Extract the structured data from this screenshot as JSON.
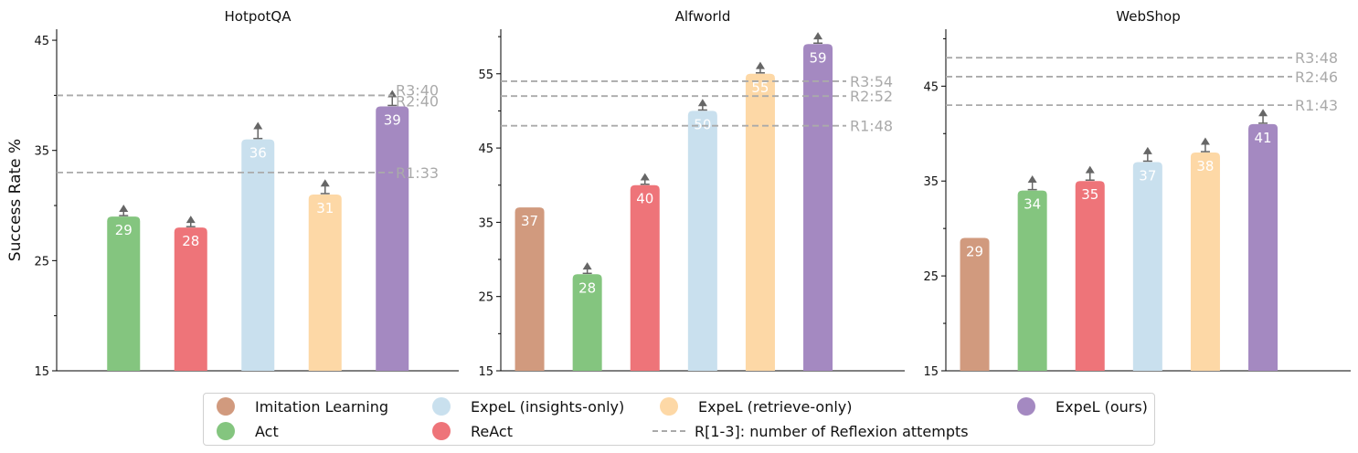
{
  "chart_data": [
    {
      "type": "bar",
      "title": "HotpotQA",
      "ylabel": "Success Rate %",
      "ylim": [
        15,
        46
      ],
      "yticks": [
        15,
        25,
        35,
        45
      ],
      "bars": [
        {
          "series": "Act",
          "value": 29,
          "label": "29",
          "arrow_to": 30
        },
        {
          "series": "ReAct",
          "value": 28,
          "label": "28",
          "arrow_to": 29
        },
        {
          "series": "ExpeL (insights-only)",
          "value": 36,
          "label": "36",
          "arrow_to": 37.5
        },
        {
          "series": "ExpeL (retrieve-only)",
          "value": 31,
          "label": "31",
          "arrow_to": 32.3
        },
        {
          "series": "ExpeL (ours)",
          "value": 39,
          "label": "39",
          "arrow_to": 40.4
        }
      ],
      "reflexion_lines": [
        {
          "label": "R3:40",
          "value": 40
        },
        {
          "label": "R2:40",
          "value": 40
        },
        {
          "label": "R1:33",
          "value": 33
        }
      ]
    },
    {
      "type": "bar",
      "title": "Alfworld",
      "ylabel": "",
      "ylim": [
        15,
        61
      ],
      "yticks": [
        15,
        25,
        35,
        45,
        55
      ],
      "bars": [
        {
          "series": "Imitation Learning",
          "value": 37,
          "label": "37",
          "arrow_to": null
        },
        {
          "series": "Act",
          "value": 28,
          "label": "28",
          "arrow_to": 29.5
        },
        {
          "series": "ReAct",
          "value": 40,
          "label": "40",
          "arrow_to": 41.5
        },
        {
          "series": "ExpeL (insights-only)",
          "value": 50,
          "label": "50",
          "arrow_to": 51.5
        },
        {
          "series": "ExpeL (retrieve-only)",
          "value": 55,
          "label": "55",
          "arrow_to": 56.5
        },
        {
          "series": "ExpeL (ours)",
          "value": 59,
          "label": "59",
          "arrow_to": 60.5
        }
      ],
      "reflexion_lines": [
        {
          "label": "R3:54",
          "value": 54
        },
        {
          "label": "R2:52",
          "value": 52
        },
        {
          "label": "R1:48",
          "value": 48
        }
      ]
    },
    {
      "type": "bar",
      "title": "WebShop",
      "ylabel": "",
      "ylim": [
        15,
        51
      ],
      "yticks": [
        15,
        25,
        35,
        45
      ],
      "bars": [
        {
          "series": "Imitation Learning",
          "value": 29,
          "label": "29",
          "arrow_to": null
        },
        {
          "series": "Act",
          "value": 34,
          "label": "34",
          "arrow_to": 35.5
        },
        {
          "series": "ReAct",
          "value": 35,
          "label": "35",
          "arrow_to": 36.5
        },
        {
          "series": "ExpeL (insights-only)",
          "value": 37,
          "label": "37",
          "arrow_to": 38.5
        },
        {
          "series": "ExpeL (retrieve-only)",
          "value": 38,
          "label": "38",
          "arrow_to": 39.5
        },
        {
          "series": "ExpeL (ours)",
          "value": 41,
          "label": "41",
          "arrow_to": 42.5
        }
      ],
      "reflexion_lines": [
        {
          "label": "R3:48",
          "value": 48
        },
        {
          "label": "R2:46",
          "value": 46
        },
        {
          "label": "R1:43",
          "value": 43
        }
      ]
    }
  ],
  "colors": {
    "Imitation Learning": "#d19a7e",
    "Act": "#84c57f",
    "ReAct": "#ee7479",
    "ExpeL (insights-only)": "#c9e0ee",
    "ExpeL (retrieve-only)": "#fdd8a6",
    "ExpeL (ours)": "#a489c1",
    "reflexion_line": "#aaaaaa",
    "arrow": "#666666"
  },
  "legend": {
    "items": [
      {
        "label": "Imitation Learning",
        "series": "Imitation Learning"
      },
      {
        "label": "Act",
        "series": "Act"
      },
      {
        "label": "ExpeL (insights-only)",
        "series": "ExpeL (insights-only)"
      },
      {
        "label": "ReAct",
        "series": "ReAct"
      },
      {
        "label": "ExpeL (retrieve-only)",
        "series": "ExpeL (retrieve-only)"
      },
      {
        "label": "R[1-3]: number of Reflexion attempts",
        "series": "reflexion"
      },
      {
        "label": "ExpeL (ours)",
        "series": "ExpeL (ours)"
      }
    ]
  }
}
